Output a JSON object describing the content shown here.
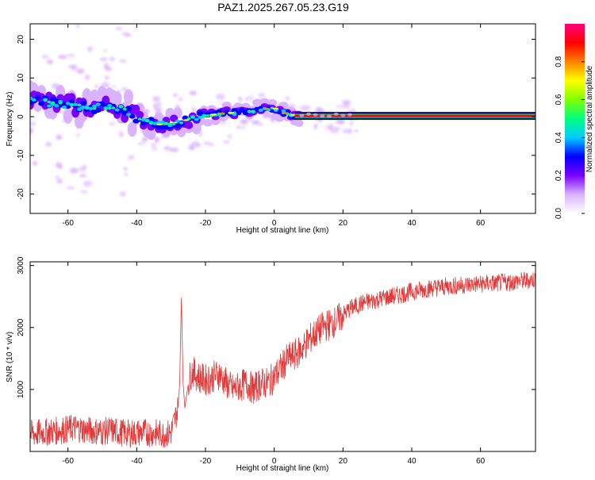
{
  "figure_title": "PAZ1.2025.267.05.23.G19",
  "colors": {
    "line": "#e03a3a",
    "frame": "#000000",
    "background": "#ffffff"
  },
  "chart_data": [
    {
      "type": "heatmap",
      "xlabel": "Height of straight line (km)",
      "ylabel": "Frequency (Hz)",
      "xlim": [
        -71,
        76
      ],
      "ylim": [
        -25,
        24
      ],
      "x_ticks": [
        -60,
        -40,
        -20,
        0,
        20,
        40,
        60
      ],
      "y_ticks": [
        -20,
        -10,
        0,
        10,
        20
      ],
      "colorbar": {
        "label": "Normalized spectral amplitude",
        "range": [
          0,
          1
        ],
        "ticks": [
          0.0,
          0.2,
          0.4,
          0.6,
          0.8
        ],
        "tick_labels": [
          "0.0",
          "0.2",
          "0.4",
          "0.6",
          "0.8"
        ],
        "colormap": [
          "#ffffff",
          "#d9b3ff",
          "#7a00ff",
          "#0000ff",
          "#00ccff",
          "#00ff80",
          "#80ff00",
          "#ffff00",
          "#ff8000",
          "#ff0000",
          "#ff0080"
        ]
      },
      "ridge": {
        "x": [
          -71,
          -65,
          -60,
          -55,
          -50,
          -45,
          -42,
          -38,
          -34,
          -30,
          -26,
          -22,
          -18,
          -14,
          -10,
          -6,
          -3,
          0,
          3,
          6,
          10,
          20,
          40,
          60,
          76
        ],
        "y": [
          4.5,
          3.5,
          3,
          2.5,
          2.5,
          2.5,
          1,
          -1,
          -2,
          -2,
          -1,
          0,
          0.5,
          1,
          1,
          1.5,
          2,
          2.2,
          1,
          0.3,
          0.2,
          0.2,
          0.2,
          0.2,
          0.2
        ]
      }
    },
    {
      "type": "line",
      "xlabel": "Height of straight line (km)",
      "ylabel": "SNR (10 * v/v)",
      "xlim": [
        -71,
        76
      ],
      "ylim": [
        0,
        3060
      ],
      "x_ticks": [
        -60,
        -40,
        -20,
        0,
        20,
        40,
        60
      ],
      "y_ticks": [
        1000,
        2000,
        3000
      ],
      "series": [
        {
          "x": [
            -71,
            -68,
            -65,
            -62,
            -60,
            -58,
            -56,
            -54,
            -52,
            -50,
            -48,
            -46,
            -44,
            -42,
            -40,
            -38,
            -36,
            -34,
            -32,
            -30,
            -29,
            -28,
            -27.5,
            -27,
            -26.5,
            -26,
            -25,
            -24,
            -22,
            -20,
            -18,
            -16,
            -14,
            -12,
            -10,
            -8,
            -6,
            -4,
            -2,
            0,
            2,
            4,
            6,
            8,
            10,
            12,
            14,
            16,
            18,
            20,
            22,
            24,
            26,
            28,
            30,
            32,
            34,
            36,
            38,
            40,
            42,
            44,
            46,
            48,
            50,
            52,
            54,
            56,
            58,
            60,
            62,
            64,
            66,
            68,
            70,
            72,
            74,
            76
          ],
          "y": [
            280,
            300,
            320,
            340,
            360,
            380,
            360,
            340,
            330,
            320,
            340,
            320,
            300,
            290,
            300,
            310,
            300,
            290,
            280,
            300,
            500,
            700,
            1100,
            2480,
            1100,
            700,
            1100,
            1300,
            1200,
            1150,
            1200,
            1250,
            1100,
            1000,
            1050,
            1100,
            1000,
            1100,
            1100,
            1200,
            1350,
            1500,
            1550,
            1650,
            1800,
            1900,
            2000,
            2050,
            2100,
            2200,
            2300,
            2350,
            2400,
            2420,
            2450,
            2480,
            2500,
            2520,
            2550,
            2580,
            2600,
            2620,
            2640,
            2650,
            2660,
            2670,
            2680,
            2690,
            2700,
            2700,
            2710,
            2710,
            2720,
            2730,
            2740,
            2750,
            2760,
            2780
          ]
        }
      ]
    }
  ]
}
